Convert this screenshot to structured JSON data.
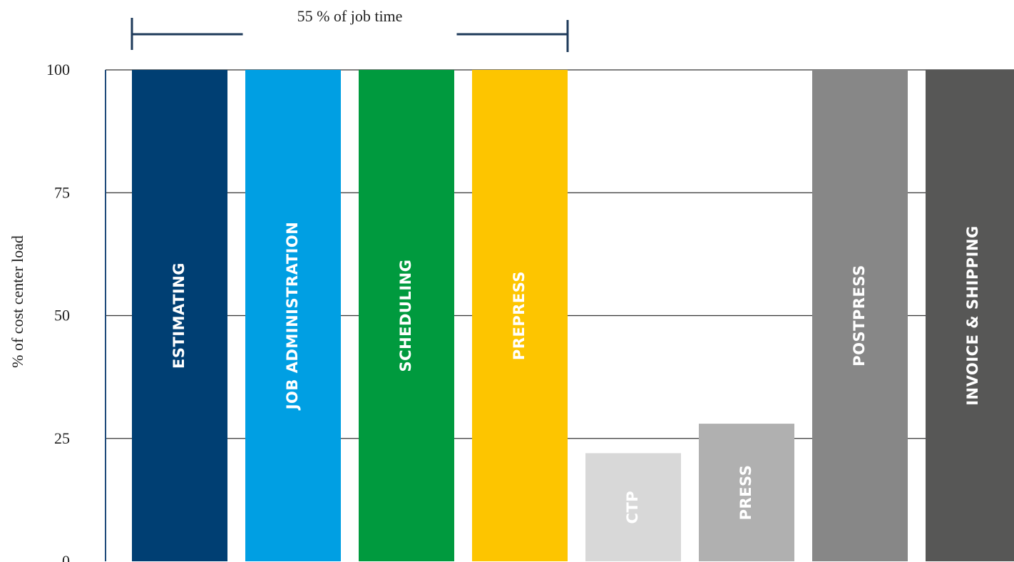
{
  "chart_data": {
    "type": "bar",
    "ylabel": "% of cost center load",
    "ylim": [
      0,
      100
    ],
    "yticks": [
      "0",
      "25",
      "50",
      "75",
      "100"
    ],
    "grid": true,
    "categories": [
      "ESTIMATING",
      "JOB ADMINISTRATION",
      "SCHEDULING",
      "PREPRESS",
      "CTP",
      "PRESS",
      "POSTPRESS",
      "INVOICE & SHIPPING"
    ],
    "values": [
      100,
      100,
      100,
      100,
      22,
      28,
      100,
      100
    ],
    "colors": [
      "#003f73",
      "#009fe3",
      "#009a3e",
      "#fdc500",
      "#d8d8d8",
      "#b0b0b0",
      "#878787",
      "#575756"
    ],
    "annotation": {
      "text": "55 % of job time",
      "spans_categories": [
        "ESTIMATING",
        "PREPRESS"
      ]
    }
  }
}
